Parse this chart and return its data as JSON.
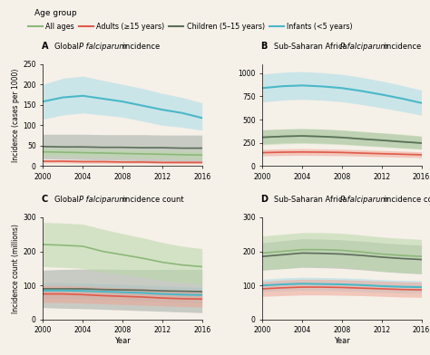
{
  "years": [
    2000,
    2002,
    2004,
    2006,
    2008,
    2010,
    2012,
    2014,
    2016
  ],
  "colors": {
    "all_ages": "#8cb87a",
    "adults": "#e05a4a",
    "children": "#5a6e5a",
    "infants": "#4ab8c8"
  },
  "fill_colors": {
    "all_ages": "#b8d8a8",
    "adults": "#f0a090",
    "children": "#b0b8b0",
    "infants": "#a8dce8"
  },
  "panel_A": {
    "title": "A  Global P falciparum incidence",
    "ylabel": "Incidence (cases per 1000)",
    "ylim": [
      0,
      250
    ],
    "yticks": [
      0,
      50,
      100,
      150,
      200,
      250
    ],
    "all_ages": [
      35,
      34,
      33,
      32,
      31,
      30,
      29,
      28,
      27
    ],
    "all_lo": [
      25,
      24,
      23,
      22,
      21,
      20,
      19,
      18,
      17
    ],
    "all_hi": [
      45,
      44,
      43,
      42,
      41,
      40,
      39,
      38,
      37
    ],
    "adults": [
      12,
      12,
      11,
      11,
      10,
      10,
      9,
      9,
      9
    ],
    "adults_lo": [
      8,
      8,
      7,
      7,
      7,
      7,
      6,
      6,
      6
    ],
    "adults_hi": [
      16,
      16,
      15,
      15,
      14,
      14,
      13,
      13,
      13
    ],
    "children": [
      48,
      47,
      47,
      46,
      46,
      45,
      45,
      44,
      44
    ],
    "children_lo": [
      18,
      17,
      16,
      15,
      14,
      13,
      12,
      11,
      10
    ],
    "children_hi": [
      78,
      78,
      78,
      77,
      77,
      77,
      76,
      76,
      76
    ],
    "infants": [
      158,
      168,
      172,
      165,
      158,
      148,
      138,
      130,
      118
    ],
    "infants_lo": [
      115,
      125,
      130,
      125,
      120,
      110,
      100,
      95,
      88
    ],
    "infants_hi": [
      200,
      215,
      220,
      210,
      200,
      190,
      178,
      168,
      155
    ]
  },
  "panel_B": {
    "title": "B  Sub-Saharan Africa P falciparum incidence",
    "ylabel": "",
    "ylim": [
      0,
      1100
    ],
    "yticks": [
      0,
      250,
      500,
      750,
      1000
    ],
    "all_ages": [
      310,
      320,
      325,
      320,
      310,
      295,
      280,
      265,
      250
    ],
    "all_lo": [
      230,
      240,
      245,
      240,
      232,
      220,
      208,
      195,
      182
    ],
    "all_hi": [
      390,
      400,
      405,
      400,
      390,
      375,
      360,
      345,
      325
    ],
    "adults": [
      145,
      150,
      152,
      150,
      147,
      140,
      134,
      128,
      122
    ],
    "adults_lo": [
      110,
      114,
      116,
      114,
      112,
      107,
      102,
      97,
      92
    ],
    "adults_hi": [
      180,
      186,
      188,
      186,
      182,
      175,
      168,
      161,
      154
    ],
    "children": [
      310,
      320,
      325,
      318,
      308,
      292,
      278,
      262,
      248
    ],
    "children_lo": [
      240,
      250,
      255,
      249,
      240,
      225,
      212,
      198,
      186
    ],
    "children_hi": [
      390,
      398,
      402,
      396,
      386,
      370,
      355,
      338,
      320
    ],
    "infants": [
      840,
      860,
      868,
      858,
      840,
      808,
      770,
      728,
      680
    ],
    "infants_lo": [
      690,
      710,
      718,
      710,
      693,
      663,
      628,
      590,
      548
    ],
    "infants_hi": [
      990,
      1010,
      1018,
      1006,
      988,
      955,
      915,
      870,
      818
    ]
  },
  "panel_C": {
    "title": "C  Global P falciparum incidence count",
    "ylabel": "Incidence count (millions)",
    "ylim": [
      0,
      300
    ],
    "yticks": [
      0,
      100,
      200,
      300
    ],
    "all_ages": [
      220,
      218,
      215,
      200,
      190,
      180,
      168,
      160,
      155
    ],
    "all_lo": [
      155,
      153,
      150,
      140,
      132,
      124,
      115,
      108,
      104
    ],
    "all_hi": [
      285,
      283,
      280,
      265,
      252,
      240,
      226,
      215,
      208
    ],
    "adults": [
      75,
      75,
      73,
      70,
      68,
      66,
      63,
      61,
      60
    ],
    "adults_lo": [
      50,
      50,
      48,
      46,
      44,
      42,
      40,
      38,
      37
    ],
    "adults_hi": [
      100,
      100,
      98,
      95,
      93,
      91,
      88,
      86,
      85
    ],
    "children": [
      90,
      90,
      90,
      88,
      87,
      86,
      84,
      83,
      82
    ],
    "children_lo": [
      35,
      33,
      32,
      30,
      28,
      26,
      24,
      22,
      20
    ],
    "children_hi": [
      145,
      147,
      148,
      148,
      147,
      147,
      147,
      147,
      147
    ],
    "infants": [
      85,
      85,
      84,
      82,
      80,
      78,
      75,
      73,
      72
    ],
    "infants_lo": [
      62,
      62,
      61,
      59,
      57,
      55,
      52,
      50,
      49
    ],
    "infants_hi": [
      108,
      108,
      107,
      105,
      103,
      101,
      98,
      96,
      95
    ]
  },
  "panel_D": {
    "title": "D  Sub-Saharan Africa P falciparum incidence count",
    "ylabel": "",
    "ylim": [
      0,
      300
    ],
    "yticks": [
      0,
      100,
      200,
      300
    ],
    "all_ages": [
      195,
      200,
      205,
      205,
      203,
      198,
      192,
      188,
      185
    ],
    "all_lo": [
      145,
      150,
      155,
      155,
      153,
      148,
      142,
      138,
      135
    ],
    "all_hi": [
      245,
      250,
      255,
      255,
      253,
      248,
      242,
      238,
      235
    ],
    "adults": [
      90,
      93,
      95,
      95,
      94,
      92,
      90,
      88,
      87
    ],
    "adults_lo": [
      68,
      70,
      72,
      72,
      71,
      70,
      68,
      66,
      65
    ],
    "adults_hi": [
      112,
      116,
      118,
      118,
      117,
      115,
      113,
      111,
      110
    ],
    "children": [
      185,
      190,
      195,
      194,
      192,
      188,
      183,
      179,
      176
    ],
    "children_lo": [
      145,
      149,
      153,
      152,
      150,
      146,
      141,
      137,
      134
    ],
    "children_hi": [
      225,
      231,
      237,
      236,
      234,
      230,
      225,
      221,
      218
    ],
    "infants": [
      100,
      103,
      105,
      104,
      103,
      101,
      98,
      96,
      95
    ],
    "infants_lo": [
      82,
      84,
      86,
      85,
      84,
      82,
      80,
      78,
      77
    ],
    "infants_hi": [
      118,
      122,
      124,
      123,
      122,
      120,
      117,
      115,
      114
    ]
  },
  "legend_labels": [
    "All ages",
    "Adults (≥15 years)",
    "Children (5–15 years)",
    "Infants (<5 years)"
  ],
  "background_color": "#f5f0e8",
  "age_group_label": "Age group",
  "xlabel": "Year"
}
